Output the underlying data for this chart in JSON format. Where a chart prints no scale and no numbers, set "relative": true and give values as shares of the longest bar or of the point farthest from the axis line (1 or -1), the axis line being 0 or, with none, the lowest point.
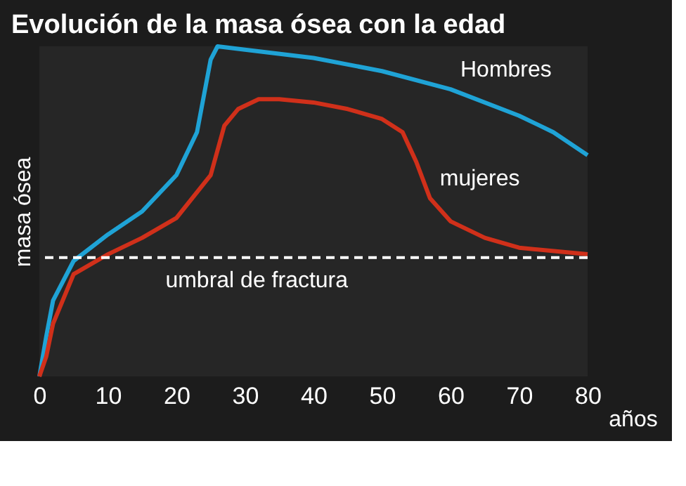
{
  "chart_data": {
    "type": "line",
    "title": "Evolución de la masa ósea con la edad",
    "xlabel": "años",
    "ylabel": "masa ósea",
    "relative": true,
    "xlim": [
      0,
      80
    ],
    "xticks": [
      0,
      10,
      20,
      30,
      40,
      50,
      60,
      70,
      80
    ],
    "marker": "none",
    "line_style": "solid",
    "series": [
      {
        "name": "Hombres",
        "color": "#1fa3d6",
        "x": [
          0,
          1,
          2,
          5,
          10,
          15,
          20,
          23,
          25,
          26,
          30,
          40,
          50,
          60,
          70,
          75,
          80
        ],
        "values": [
          0,
          0.12,
          0.23,
          0.35,
          0.43,
          0.5,
          0.61,
          0.74,
          0.96,
          1.0,
          0.99,
          0.965,
          0.925,
          0.87,
          0.79,
          0.74,
          0.67
        ]
      },
      {
        "name": "mujeres",
        "color": "#d0301a",
        "x": [
          0,
          1,
          2,
          5,
          10,
          15,
          20,
          25,
          27,
          29,
          32,
          35,
          40,
          45,
          50,
          53,
          55,
          57,
          60,
          65,
          70,
          80
        ],
        "values": [
          0,
          0.06,
          0.16,
          0.31,
          0.37,
          0.42,
          0.48,
          0.61,
          0.76,
          0.81,
          0.84,
          0.84,
          0.83,
          0.81,
          0.78,
          0.74,
          0.65,
          0.54,
          0.47,
          0.42,
          0.39,
          0.37
        ]
      }
    ],
    "ref_lines": [
      {
        "axis": "y",
        "value": 0.36,
        "label": "umbral de fractura",
        "color": "#ffffff",
        "line_style": "dashed"
      }
    ]
  }
}
